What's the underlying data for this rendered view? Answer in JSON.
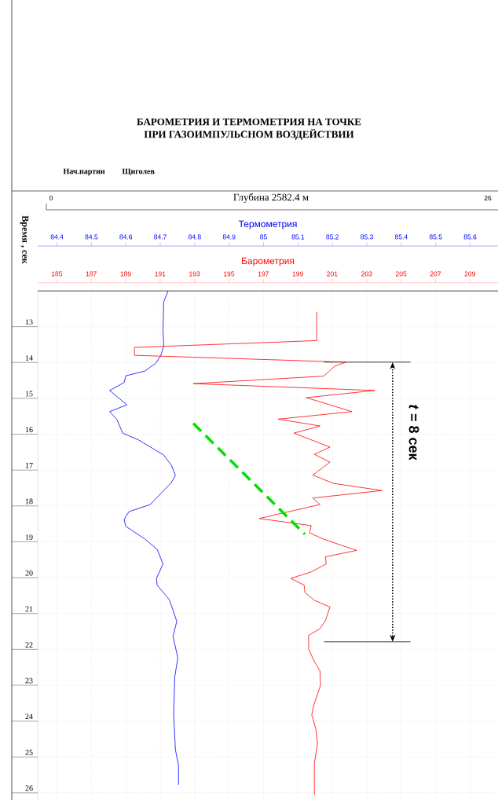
{
  "chart_data": {
    "type": "line",
    "title": "БАРОМЕТРИЯ И ТЕРМОМЕТРИЯ НА ТОЧКЕ",
    "subtitle": "ПРИ ГАЗОИМПУЛЬСНОМ ВОЗДЕЙСТВИИ",
    "xlabel": "Термометрия",
    "x2label": "Барометрия",
    "ylabel": "Время , сек",
    "xlim": [
      84.344,
      85.681
    ],
    "xticks": [
      84.4,
      84.5,
      84.6,
      84.7,
      84.8,
      84.9,
      85,
      85.1,
      85.2,
      85.3,
      85.4,
      85.5,
      85.6
    ],
    "x2lim": [
      183.89,
      210.63
    ],
    "x2ticks": [
      185,
      187,
      189,
      191,
      193,
      195,
      197,
      199,
      201,
      203,
      205,
      207,
      209
    ],
    "ylim": [
      26.2,
      12.0
    ],
    "yticks": [
      13,
      14,
      15,
      16,
      17,
      18,
      19,
      20,
      21,
      22,
      23,
      24,
      25,
      26
    ],
    "grid": true,
    "annotations": [
      "Нач.партии",
      "Щиголев",
      "Глубина     2582.4 м",
      "0",
      "26",
      "*t* = 8 сек"
    ],
    "ref_lines": [
      {
        "axis": "y",
        "value": 13.99,
        "color": "#000000"
      },
      {
        "axis": "y",
        "value": 21.79,
        "color": "#000000"
      }
    ],
    "series": [
      {
        "color": "#0000ff",
        "x": [
          84.723,
          84.71,
          84.708,
          84.71,
          84.702,
          84.687,
          84.655,
          84.6,
          84.595,
          84.553,
          84.603,
          84.553,
          84.574,
          84.591,
          84.637,
          84.71,
          84.732,
          84.744,
          84.732,
          84.71,
          84.671,
          84.609,
          84.595,
          84.6,
          84.655,
          84.691,
          84.708,
          84.689,
          84.691,
          84.726,
          84.735,
          84.748,
          84.737,
          84.751,
          84.742,
          84.739,
          84.744,
          84.753,
          84.753
        ],
        "values": [
          12.0,
          12.31,
          13.1,
          13.53,
          13.8,
          14.02,
          14.24,
          14.37,
          14.56,
          14.78,
          15.18,
          15.37,
          15.59,
          15.97,
          16.16,
          16.58,
          16.86,
          17.15,
          17.35,
          17.57,
          17.96,
          18.16,
          18.38,
          18.57,
          18.92,
          19.21,
          19.62,
          20.02,
          20.21,
          20.61,
          20.85,
          21.22,
          21.64,
          22.23,
          22.78,
          23.81,
          24.8,
          25.23,
          25.78
        ]
      },
      {
        "axis": "x2",
        "color": "#ff0000",
        "x": [
          200.1,
          200.1,
          189.51,
          189.51,
          201.79,
          201.15,
          200.51,
          192.93,
          203.47,
          199.5,
          202.15,
          197.86,
          200.29,
          198.77,
          200.87,
          199.96,
          200.87,
          199.87,
          201.06,
          203.89,
          199.87,
          200.29,
          196.76,
          199.78,
          199.68,
          200.51,
          202.42,
          200.6,
          200.65,
          199.78,
          198.59,
          199.37,
          199.41,
          199.96,
          200.87,
          200.6,
          200.29,
          199.63,
          199.63,
          199.96,
          200.29,
          200.32,
          199.92,
          199.81,
          200.05,
          200.14,
          199.96,
          199.96
        ],
        "values": [
          12.59,
          13.39,
          13.58,
          13.8,
          13.99,
          14.1,
          14.38,
          14.59,
          14.78,
          14.98,
          15.37,
          15.58,
          15.77,
          15.97,
          16.36,
          16.56,
          16.78,
          17.14,
          17.37,
          17.57,
          17.78,
          17.96,
          18.35,
          18.55,
          18.75,
          18.93,
          19.24,
          19.42,
          19.62,
          19.84,
          20.02,
          20.21,
          20.41,
          20.63,
          20.82,
          21.2,
          21.42,
          21.61,
          21.99,
          22.34,
          22.6,
          23.0,
          23.57,
          23.83,
          24.22,
          24.64,
          25.18,
          26.06
        ]
      },
      {
        "axis": "x2",
        "type": "line",
        "line_style": "dashed",
        "color": "#00e000",
        "x": [
          192.93,
          199.41
        ],
        "values": [
          15.7,
          18.79
        ]
      }
    ]
  }
}
